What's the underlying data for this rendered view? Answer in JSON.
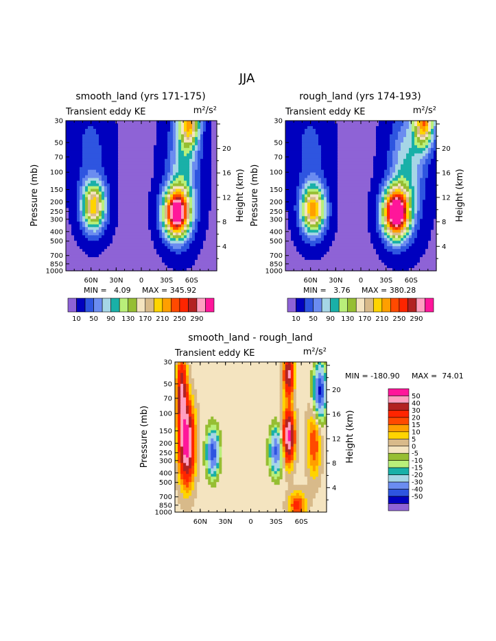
{
  "title": "JJA",
  "colors": {
    "pos": [
      "#8e63d6",
      "#0000bf",
      "#2e55e0",
      "#6b8cf0",
      "#a6d6e6",
      "#19b0a8",
      "#b9ef7a",
      "#96be32",
      "#f4e4c0",
      "#d8ba8a",
      "#ffd400",
      "#ff9f00",
      "#ff4a00",
      "#ff2500",
      "#b22222",
      "#ff9fc0",
      "#ff169a"
    ],
    "diff": [
      "#8e63d6",
      "#0000bf",
      "#2e55e0",
      "#6b8cf0",
      "#a6d6e6",
      "#19b0a8",
      "#b9ef7a",
      "#96be32",
      "#f4e4c0",
      "#d8ba8a",
      "#ffd400",
      "#ff9f00",
      "#ff4a00",
      "#ff2500",
      "#b22222",
      "#ff9fc0",
      "#ff169a"
    ]
  },
  "chart_data": [
    {
      "type": "heatmap",
      "title": "smooth_land (yrs 171-175)",
      "subtitle": "Transient eddy KE",
      "units": "m²/s²",
      "ylabel": "Pressure (mb)",
      "y2label": "Height (km)",
      "xticks": [
        "60N",
        "30N",
        "0",
        "30S",
        "60S"
      ],
      "yticks": [
        30,
        50,
        70,
        100,
        150,
        200,
        250,
        300,
        400,
        500,
        700,
        850,
        1000
      ],
      "y2ticks": [
        4,
        8,
        12,
        16,
        20
      ],
      "min_label": "MIN =   4.09",
      "max_label": "MAX = 345.92",
      "colorbar_labels": [
        "10",
        "50",
        "90",
        "130",
        "170",
        "210",
        "250",
        "290"
      ],
      "maxima": [
        {
          "lat": 57,
          "p": 230,
          "value": 200
        },
        {
          "lat": -40,
          "p": 260,
          "value": 346
        },
        {
          "lat": -55,
          "p": 30,
          "value": 210
        }
      ]
    },
    {
      "type": "heatmap",
      "title": "rough_land (yrs 174-193)",
      "subtitle": "Transient eddy KE",
      "units": "m²/s²",
      "ylabel": "Pressure (mb)",
      "y2label": "Height (km)",
      "xticks": [
        "60N",
        "30N",
        "0",
        "30S",
        "60S"
      ],
      "yticks": [
        30,
        50,
        70,
        100,
        150,
        200,
        250,
        300,
        400,
        500,
        700,
        850,
        1000
      ],
      "y2ticks": [
        4,
        8,
        12,
        16,
        20
      ],
      "min_label": "MIN =   3.76",
      "max_label": "MAX = 380.28",
      "colorbar_labels": [
        "10",
        "50",
        "90",
        "130",
        "170",
        "210",
        "250",
        "290"
      ],
      "maxima": [
        {
          "lat": 57,
          "p": 250,
          "value": 230
        },
        {
          "lat": -40,
          "p": 260,
          "value": 380
        },
        {
          "lat": -70,
          "p": 30,
          "value": 230
        }
      ]
    },
    {
      "type": "heatmap",
      "title": "smooth_land - rough_land",
      "subtitle": "Transient eddy KE",
      "units": "m²/s²",
      "ylabel": "Pressure (mb)",
      "y2label": "Height (km)",
      "xticks": [
        "60N",
        "30N",
        "0",
        "30S",
        "60S"
      ],
      "yticks": [
        30,
        50,
        70,
        100,
        150,
        200,
        250,
        300,
        400,
        500,
        700,
        850,
        1000
      ],
      "y2ticks": [
        4,
        8,
        12,
        16,
        20
      ],
      "min_label": "MIN = -180.90",
      "max_label": "MAX =  74.01",
      "colorbar_labels": [
        "50",
        "40",
        "30",
        "20",
        "15",
        "10",
        "5",
        "0",
        "-5",
        "-10",
        "-15",
        "-20",
        "-30",
        "-40",
        "-50"
      ],
      "maxima": [
        {
          "lat": 75,
          "p": 200,
          "value": 60
        },
        {
          "lat": 42,
          "p": 250,
          "value": -45
        },
        {
          "lat": -30,
          "p": 250,
          "value": -40
        },
        {
          "lat": -45,
          "p": 170,
          "value": 55
        }
      ]
    }
  ]
}
